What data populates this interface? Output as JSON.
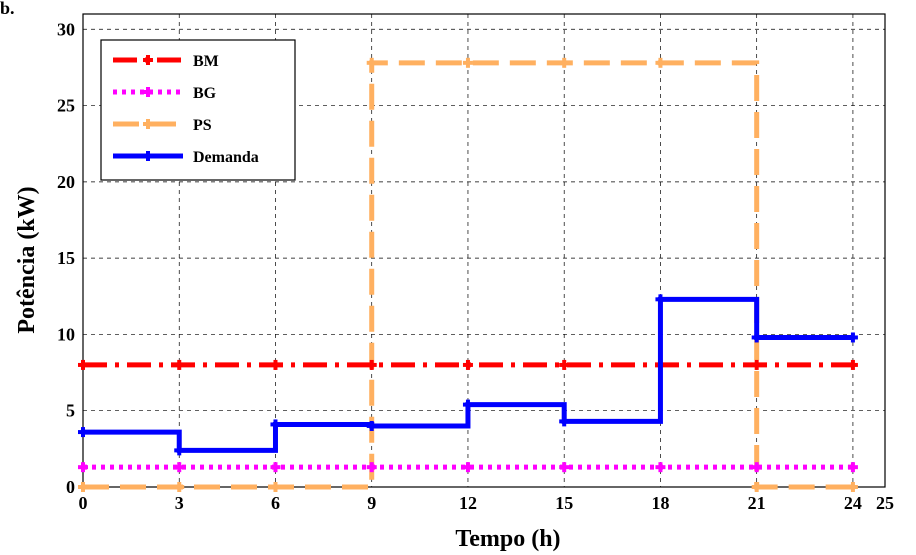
{
  "corner_label": "b.",
  "chart_data": {
    "type": "line",
    "step": true,
    "xlabel": "Tempo (h)",
    "ylabel": "Potência (kW)",
    "xlim": [
      0,
      25
    ],
    "ylim": [
      0,
      31
    ],
    "xticks": [
      0,
      3,
      6,
      9,
      12,
      15,
      18,
      21,
      24,
      25
    ],
    "yticks": [
      0,
      5,
      10,
      15,
      20,
      25,
      30
    ],
    "grid": true,
    "legend": "top-left",
    "series": [
      {
        "name": "BM",
        "color": "#ff0000",
        "dash": "dash-dot",
        "x": [
          0,
          3,
          6,
          9,
          12,
          15,
          18,
          21,
          24
        ],
        "y": [
          8,
          8,
          8,
          8,
          8,
          8,
          8,
          8,
          8
        ]
      },
      {
        "name": "BG",
        "color": "#ff00ff",
        "dash": "dotted",
        "x": [
          0,
          3,
          6,
          9,
          12,
          15,
          18,
          21,
          24
        ],
        "y": [
          1.3,
          1.3,
          1.3,
          1.3,
          1.3,
          1.3,
          1.3,
          1.3,
          1.3
        ]
      },
      {
        "name": "PS",
        "color": "#ffb060",
        "dash": "dashed",
        "x": [
          0,
          3,
          6,
          9,
          12,
          15,
          18,
          21,
          24
        ],
        "y": [
          0,
          0,
          0,
          27.8,
          27.8,
          27.8,
          27.8,
          0,
          0
        ]
      },
      {
        "name": "Demanda",
        "color": "#0000ff",
        "dash": "solid",
        "x": [
          0,
          3,
          6,
          9,
          12,
          15,
          18,
          21,
          24
        ],
        "y": [
          3.6,
          2.4,
          4.1,
          4.0,
          5.4,
          4.3,
          12.3,
          9.8,
          9.8
        ]
      }
    ]
  }
}
